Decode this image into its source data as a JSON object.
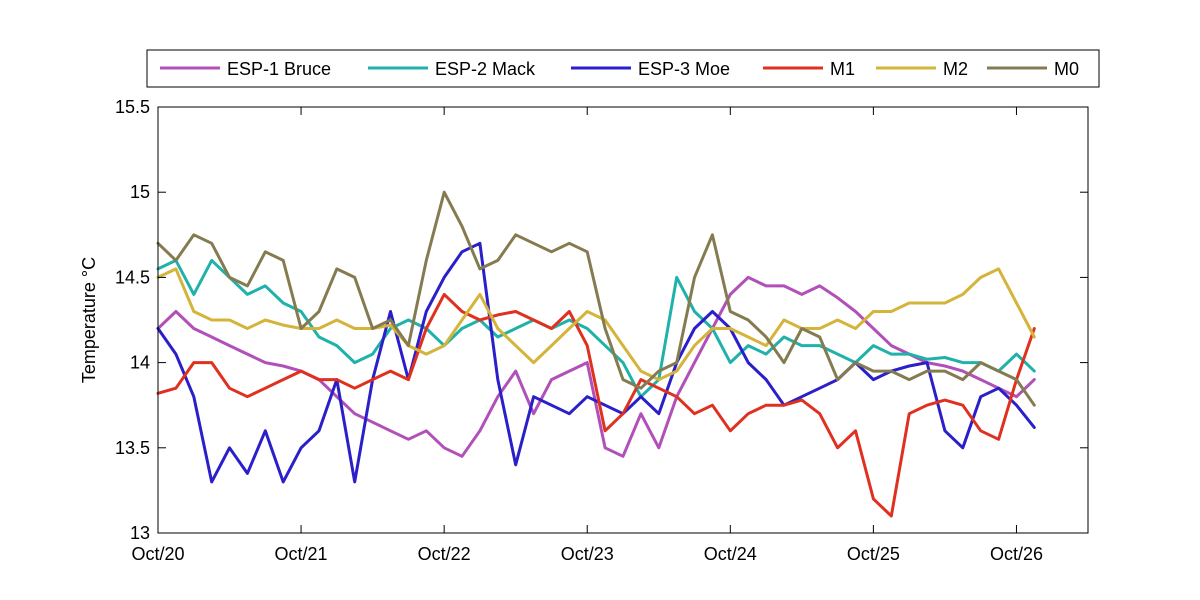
{
  "chart_data": {
    "type": "line",
    "title": "",
    "xlabel": "",
    "ylabel": "Temperature °C",
    "xlim": [
      "2011-10-20",
      "2011-10-26 12:00"
    ],
    "ylim": [
      13,
      15.5
    ],
    "x_ticks": [
      "Oct/20",
      "Oct/21",
      "Oct/22",
      "Oct/23",
      "Oct/24",
      "Oct/25",
      "Oct/26"
    ],
    "y_ticks": [
      "13",
      "13.5",
      "14",
      "14.5",
      "15",
      "15.5"
    ],
    "grid": false,
    "legend_position": "top",
    "series": [
      {
        "name": "ESP-1 Bruce",
        "color": "#b050b8",
        "x": [
          "2011-10-20 00:00",
          "2011-10-20 03:00",
          "2011-10-20 06:00",
          "2011-10-20 09:00",
          "2011-10-20 12:00",
          "2011-10-20 15:00",
          "2011-10-20 18:00",
          "2011-10-20 21:00",
          "2011-10-21 00:00",
          "2011-10-21 03:00",
          "2011-10-21 06:00",
          "2011-10-21 09:00",
          "2011-10-21 12:00",
          "2011-10-21 15:00",
          "2011-10-21 18:00",
          "2011-10-21 21:00",
          "2011-10-22 00:00",
          "2011-10-22 03:00",
          "2011-10-22 06:00",
          "2011-10-22 09:00",
          "2011-10-22 12:00",
          "2011-10-22 15:00",
          "2011-10-22 18:00",
          "2011-10-22 21:00",
          "2011-10-23 00:00",
          "2011-10-23 03:00",
          "2011-10-23 06:00",
          "2011-10-23 09:00",
          "2011-10-23 12:00",
          "2011-10-23 15:00",
          "2011-10-23 18:00",
          "2011-10-23 21:00",
          "2011-10-24 00:00",
          "2011-10-24 03:00",
          "2011-10-24 06:00",
          "2011-10-24 09:00",
          "2011-10-24 12:00",
          "2011-10-24 15:00",
          "2011-10-24 18:00",
          "2011-10-24 21:00",
          "2011-10-25 00:00",
          "2011-10-25 03:00",
          "2011-10-25 06:00",
          "2011-10-25 09:00",
          "2011-10-25 12:00",
          "2011-10-25 15:00",
          "2011-10-25 18:00",
          "2011-10-25 21:00",
          "2011-10-26 00:00",
          "2011-10-26 03:00"
        ],
        "y": [
          14.2,
          14.3,
          14.2,
          14.15,
          14.1,
          14.05,
          14.0,
          13.98,
          13.95,
          13.9,
          13.8,
          13.7,
          13.65,
          13.6,
          13.55,
          13.6,
          13.5,
          13.45,
          13.6,
          13.8,
          13.95,
          13.7,
          13.9,
          13.95,
          14.0,
          13.5,
          13.45,
          13.7,
          13.5,
          13.8,
          14.0,
          14.2,
          14.4,
          14.5,
          14.45,
          14.45,
          14.4,
          14.45,
          14.38,
          14.3,
          14.2,
          14.1,
          14.05,
          14.0,
          13.98,
          13.95,
          13.9,
          13.85,
          13.8,
          13.9
        ]
      },
      {
        "name": "ESP-2 Mack",
        "color": "#20b2aa",
        "x": [
          "2011-10-20 00:00",
          "2011-10-20 03:00",
          "2011-10-20 06:00",
          "2011-10-20 09:00",
          "2011-10-20 12:00",
          "2011-10-20 15:00",
          "2011-10-20 18:00",
          "2011-10-20 21:00",
          "2011-10-21 00:00",
          "2011-10-21 03:00",
          "2011-10-21 06:00",
          "2011-10-21 09:00",
          "2011-10-21 12:00",
          "2011-10-21 15:00",
          "2011-10-21 18:00",
          "2011-10-21 21:00",
          "2011-10-22 00:00",
          "2011-10-22 03:00",
          "2011-10-22 06:00",
          "2011-10-22 09:00",
          "2011-10-22 12:00",
          "2011-10-22 15:00",
          "2011-10-22 18:00",
          "2011-10-22 21:00",
          "2011-10-23 00:00",
          "2011-10-23 03:00",
          "2011-10-23 06:00",
          "2011-10-23 09:00",
          "2011-10-23 12:00",
          "2011-10-23 15:00",
          "2011-10-23 18:00",
          "2011-10-23 21:00",
          "2011-10-24 00:00",
          "2011-10-24 03:00",
          "2011-10-24 06:00",
          "2011-10-24 09:00",
          "2011-10-24 12:00",
          "2011-10-24 15:00",
          "2011-10-24 18:00",
          "2011-10-24 21:00",
          "2011-10-25 00:00",
          "2011-10-25 03:00",
          "2011-10-25 06:00",
          "2011-10-25 09:00",
          "2011-10-25 12:00",
          "2011-10-25 15:00",
          "2011-10-25 18:00",
          "2011-10-25 21:00",
          "2011-10-26 00:00",
          "2011-10-26 03:00"
        ],
        "y": [
          14.55,
          14.6,
          14.4,
          14.6,
          14.5,
          14.4,
          14.45,
          14.35,
          14.3,
          14.15,
          14.1,
          14.0,
          14.05,
          14.2,
          14.25,
          14.2,
          14.1,
          14.2,
          14.25,
          14.15,
          14.2,
          14.25,
          14.2,
          14.25,
          14.2,
          14.1,
          14.0,
          13.8,
          13.9,
          14.5,
          14.3,
          14.2,
          14.0,
          14.1,
          14.05,
          14.15,
          14.1,
          14.1,
          14.05,
          14.0,
          14.1,
          14.05,
          14.05,
          14.02,
          14.03,
          14.0,
          14.0,
          13.95,
          14.05,
          13.95
        ]
      },
      {
        "name": "ESP-3 Moe",
        "color": "#2a1fc8",
        "x": [
          "2011-10-20 00:00",
          "2011-10-20 03:00",
          "2011-10-20 06:00",
          "2011-10-20 09:00",
          "2011-10-20 12:00",
          "2011-10-20 15:00",
          "2011-10-20 18:00",
          "2011-10-20 21:00",
          "2011-10-21 00:00",
          "2011-10-21 03:00",
          "2011-10-21 06:00",
          "2011-10-21 09:00",
          "2011-10-21 12:00",
          "2011-10-21 15:00",
          "2011-10-21 18:00",
          "2011-10-21 21:00",
          "2011-10-22 00:00",
          "2011-10-22 03:00",
          "2011-10-22 06:00",
          "2011-10-22 09:00",
          "2011-10-22 12:00",
          "2011-10-22 15:00",
          "2011-10-22 18:00",
          "2011-10-22 21:00",
          "2011-10-23 00:00",
          "2011-10-23 03:00",
          "2011-10-23 06:00",
          "2011-10-23 09:00",
          "2011-10-23 12:00",
          "2011-10-23 15:00",
          "2011-10-23 18:00",
          "2011-10-23 21:00",
          "2011-10-24 00:00",
          "2011-10-24 03:00",
          "2011-10-24 06:00",
          "2011-10-24 09:00",
          "2011-10-24 12:00",
          "2011-10-24 15:00",
          "2011-10-24 18:00",
          "2011-10-24 21:00",
          "2011-10-25 00:00",
          "2011-10-25 03:00",
          "2011-10-25 06:00",
          "2011-10-25 09:00",
          "2011-10-25 12:00",
          "2011-10-25 15:00",
          "2011-10-25 18:00",
          "2011-10-25 21:00",
          "2011-10-26 00:00",
          "2011-10-26 03:00"
        ],
        "y": [
          14.2,
          14.05,
          13.8,
          13.3,
          13.5,
          13.35,
          13.6,
          13.3,
          13.5,
          13.6,
          13.9,
          13.3,
          13.9,
          14.3,
          13.9,
          14.3,
          14.5,
          14.65,
          14.7,
          13.9,
          13.4,
          13.8,
          13.75,
          13.7,
          13.8,
          13.75,
          13.7,
          13.8,
          13.7,
          14.0,
          14.2,
          14.3,
          14.2,
          14.0,
          13.9,
          13.75,
          13.8,
          13.85,
          13.9,
          14.0,
          13.9,
          13.95,
          13.98,
          14.0,
          13.6,
          13.5,
          13.8,
          13.85,
          13.75,
          13.62
        ]
      },
      {
        "name": "M1",
        "color": "#e03020",
        "x": [
          "2011-10-20 00:00",
          "2011-10-20 03:00",
          "2011-10-20 06:00",
          "2011-10-20 09:00",
          "2011-10-20 12:00",
          "2011-10-20 15:00",
          "2011-10-20 18:00",
          "2011-10-20 21:00",
          "2011-10-21 00:00",
          "2011-10-21 03:00",
          "2011-10-21 06:00",
          "2011-10-21 09:00",
          "2011-10-21 12:00",
          "2011-10-21 15:00",
          "2011-10-21 18:00",
          "2011-10-21 21:00",
          "2011-10-22 00:00",
          "2011-10-22 03:00",
          "2011-10-22 06:00",
          "2011-10-22 09:00",
          "2011-10-22 12:00",
          "2011-10-22 15:00",
          "2011-10-22 18:00",
          "2011-10-22 21:00",
          "2011-10-23 00:00",
          "2011-10-23 03:00",
          "2011-10-23 06:00",
          "2011-10-23 09:00",
          "2011-10-23 12:00",
          "2011-10-23 15:00",
          "2011-10-23 18:00",
          "2011-10-23 21:00",
          "2011-10-24 00:00",
          "2011-10-24 03:00",
          "2011-10-24 06:00",
          "2011-10-24 09:00",
          "2011-10-24 12:00",
          "2011-10-24 15:00",
          "2011-10-24 18:00",
          "2011-10-24 21:00",
          "2011-10-25 00:00",
          "2011-10-25 03:00",
          "2011-10-25 06:00",
          "2011-10-25 09:00",
          "2011-10-25 12:00",
          "2011-10-25 15:00",
          "2011-10-25 18:00",
          "2011-10-25 21:00",
          "2011-10-26 00:00",
          "2011-10-26 03:00"
        ],
        "y": [
          13.82,
          13.85,
          14.0,
          14.0,
          13.85,
          13.8,
          13.85,
          13.9,
          13.95,
          13.9,
          13.9,
          13.85,
          13.9,
          13.95,
          13.9,
          14.2,
          14.4,
          14.3,
          14.25,
          14.28,
          14.3,
          14.25,
          14.2,
          14.3,
          14.1,
          13.6,
          13.7,
          13.9,
          13.85,
          13.8,
          13.7,
          13.75,
          13.6,
          13.7,
          13.75,
          13.75,
          13.78,
          13.7,
          13.5,
          13.6,
          13.2,
          13.1,
          13.7,
          13.75,
          13.78,
          13.75,
          13.6,
          13.55,
          13.9,
          14.2
        ]
      },
      {
        "name": "M2",
        "color": "#d4b43a",
        "x": [
          "2011-10-20 00:00",
          "2011-10-20 03:00",
          "2011-10-20 06:00",
          "2011-10-20 09:00",
          "2011-10-20 12:00",
          "2011-10-20 15:00",
          "2011-10-20 18:00",
          "2011-10-20 21:00",
          "2011-10-21 00:00",
          "2011-10-21 03:00",
          "2011-10-21 06:00",
          "2011-10-21 09:00",
          "2011-10-21 12:00",
          "2011-10-21 15:00",
          "2011-10-21 18:00",
          "2011-10-21 21:00",
          "2011-10-22 00:00",
          "2011-10-22 03:00",
          "2011-10-22 06:00",
          "2011-10-22 09:00",
          "2011-10-22 12:00",
          "2011-10-22 15:00",
          "2011-10-22 18:00",
          "2011-10-22 21:00",
          "2011-10-23 00:00",
          "2011-10-23 03:00",
          "2011-10-23 06:00",
          "2011-10-23 09:00",
          "2011-10-23 12:00",
          "2011-10-23 15:00",
          "2011-10-23 18:00",
          "2011-10-23 21:00",
          "2011-10-24 00:00",
          "2011-10-24 03:00",
          "2011-10-24 06:00",
          "2011-10-24 09:00",
          "2011-10-24 12:00",
          "2011-10-24 15:00",
          "2011-10-24 18:00",
          "2011-10-24 21:00",
          "2011-10-25 00:00",
          "2011-10-25 03:00",
          "2011-10-25 06:00",
          "2011-10-25 09:00",
          "2011-10-25 12:00",
          "2011-10-25 15:00",
          "2011-10-25 18:00",
          "2011-10-25 21:00",
          "2011-10-26 00:00",
          "2011-10-26 03:00"
        ],
        "y": [
          14.5,
          14.55,
          14.3,
          14.25,
          14.25,
          14.2,
          14.25,
          14.22,
          14.2,
          14.2,
          14.25,
          14.2,
          14.2,
          14.22,
          14.1,
          14.05,
          14.1,
          14.25,
          14.4,
          14.2,
          14.1,
          14.0,
          14.1,
          14.2,
          14.3,
          14.25,
          14.1,
          13.95,
          13.9,
          13.95,
          14.1,
          14.2,
          14.2,
          14.15,
          14.1,
          14.25,
          14.2,
          14.2,
          14.25,
          14.2,
          14.3,
          14.3,
          14.35,
          14.35,
          14.35,
          14.4,
          14.5,
          14.55,
          14.35,
          14.15
        ]
      },
      {
        "name": "M0",
        "color": "#857b50",
        "x": [
          "2011-10-20 00:00",
          "2011-10-20 03:00",
          "2011-10-20 06:00",
          "2011-10-20 09:00",
          "2011-10-20 12:00",
          "2011-10-20 15:00",
          "2011-10-20 18:00",
          "2011-10-20 21:00",
          "2011-10-21 00:00",
          "2011-10-21 03:00",
          "2011-10-21 06:00",
          "2011-10-21 09:00",
          "2011-10-21 12:00",
          "2011-10-21 15:00",
          "2011-10-21 18:00",
          "2011-10-21 21:00",
          "2011-10-22 00:00",
          "2011-10-22 03:00",
          "2011-10-22 06:00",
          "2011-10-22 09:00",
          "2011-10-22 12:00",
          "2011-10-22 15:00",
          "2011-10-22 18:00",
          "2011-10-22 21:00",
          "2011-10-23 00:00",
          "2011-10-23 03:00",
          "2011-10-23 06:00",
          "2011-10-23 09:00",
          "2011-10-23 12:00",
          "2011-10-23 15:00",
          "2011-10-23 18:00",
          "2011-10-23 21:00",
          "2011-10-24 00:00",
          "2011-10-24 03:00",
          "2011-10-24 06:00",
          "2011-10-24 09:00",
          "2011-10-24 12:00",
          "2011-10-24 15:00",
          "2011-10-24 18:00",
          "2011-10-24 21:00",
          "2011-10-25 00:00",
          "2011-10-25 03:00",
          "2011-10-25 06:00",
          "2011-10-25 09:00",
          "2011-10-25 12:00",
          "2011-10-25 15:00",
          "2011-10-25 18:00",
          "2011-10-25 21:00",
          "2011-10-26 00:00",
          "2011-10-26 03:00"
        ],
        "y": [
          14.7,
          14.6,
          14.75,
          14.7,
          14.5,
          14.45,
          14.65,
          14.6,
          14.2,
          14.3,
          14.55,
          14.5,
          14.2,
          14.25,
          14.1,
          14.6,
          15.0,
          14.8,
          14.55,
          14.6,
          14.75,
          14.7,
          14.65,
          14.7,
          14.65,
          14.2,
          13.9,
          13.85,
          13.95,
          14.0,
          14.5,
          14.75,
          14.3,
          14.25,
          14.15,
          14.0,
          14.2,
          14.15,
          13.9,
          14.0,
          13.95,
          13.95,
          13.9,
          13.95,
          13.95,
          13.9,
          14.0,
          13.95,
          13.9,
          13.75
        ]
      }
    ]
  }
}
